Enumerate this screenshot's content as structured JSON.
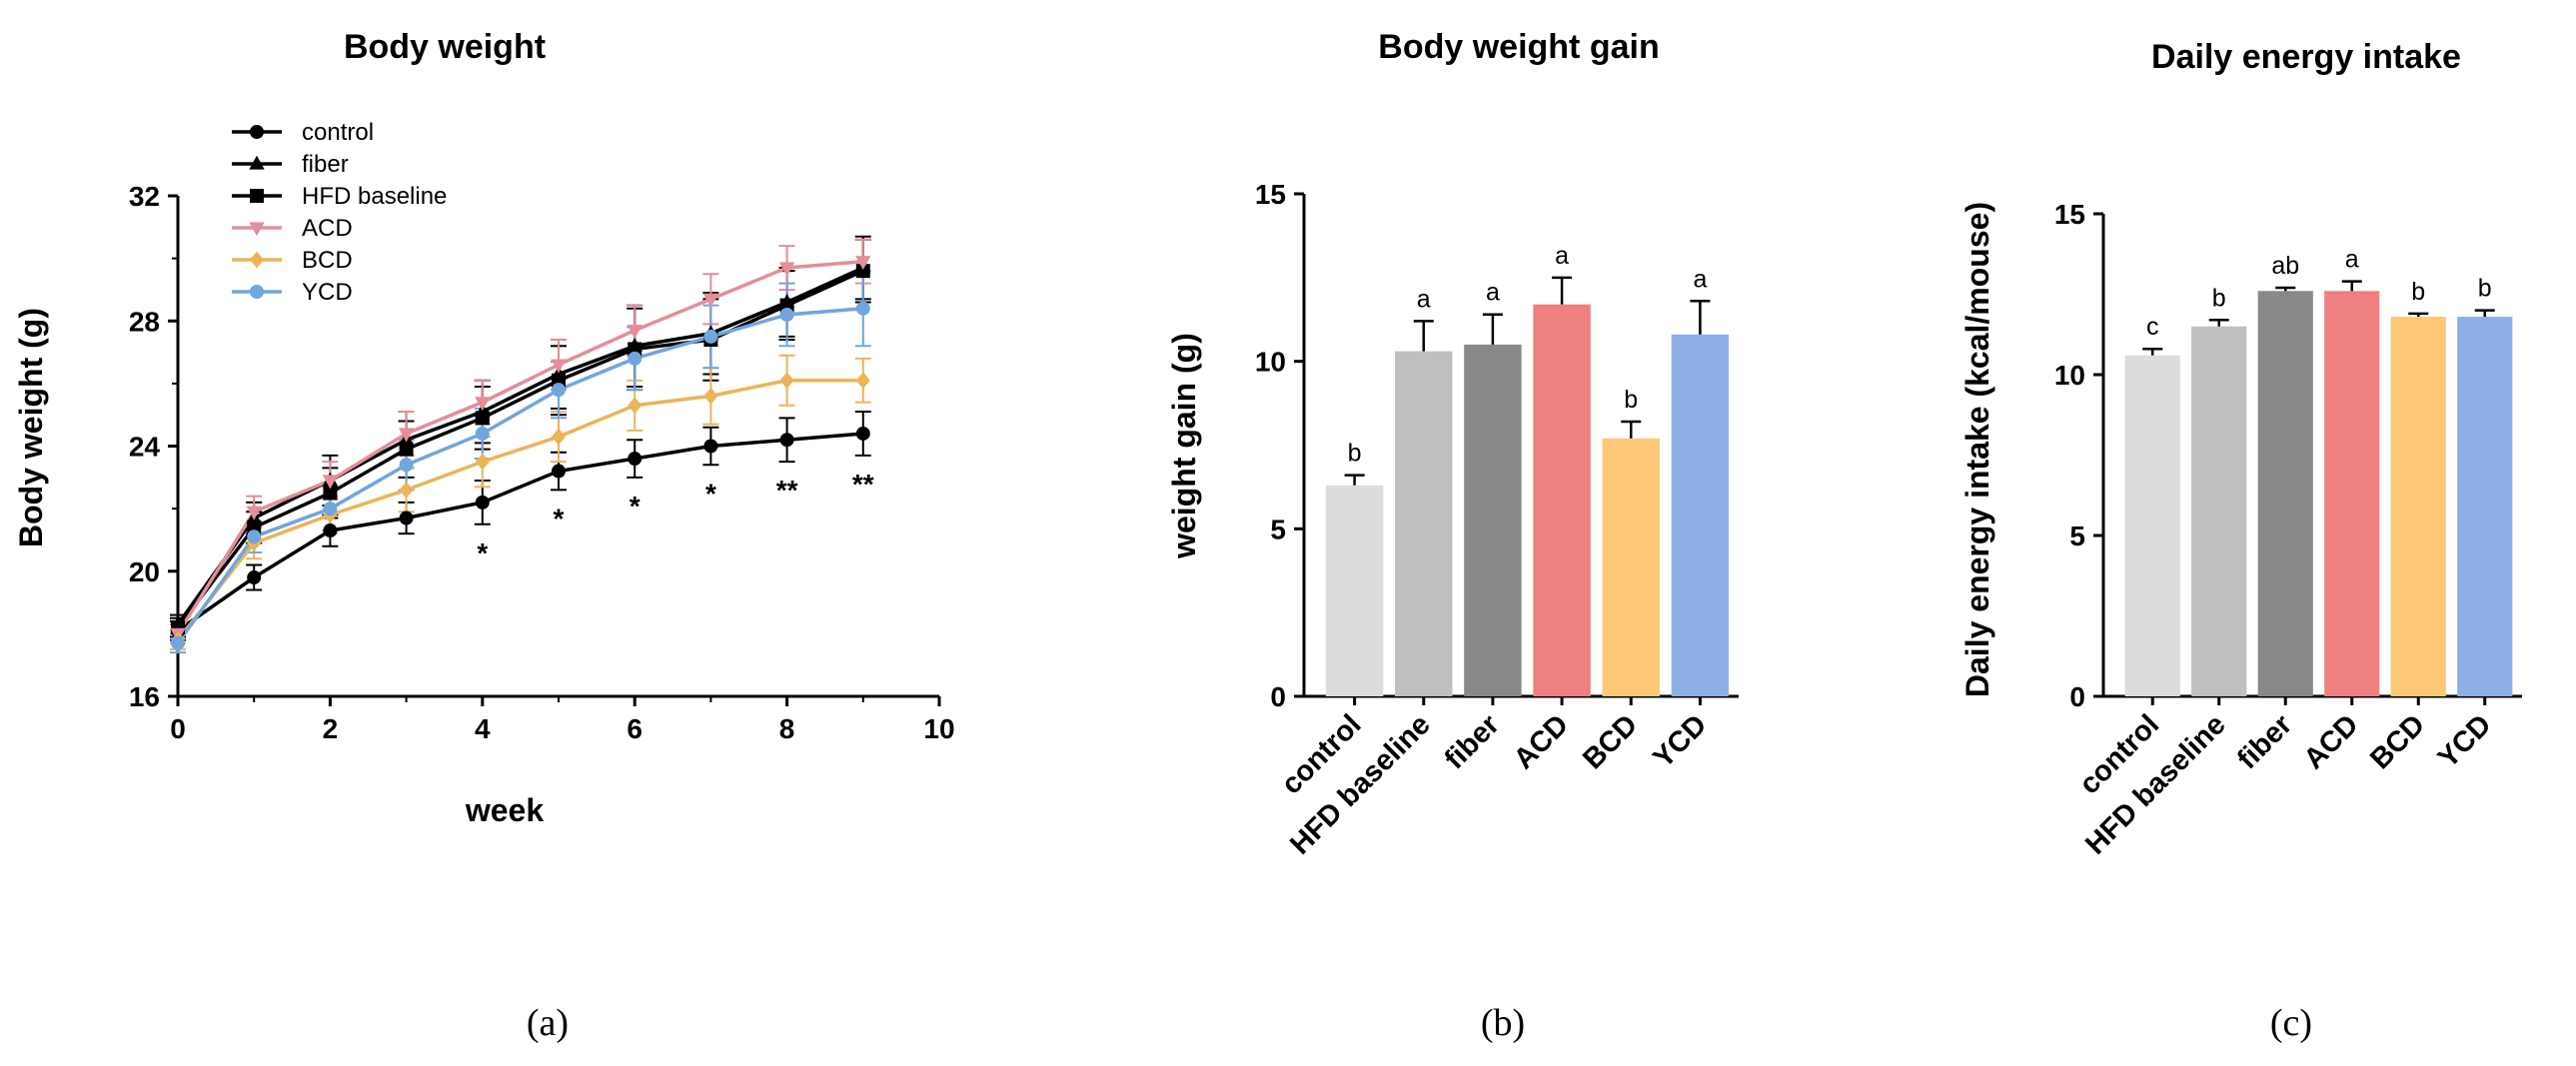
{
  "chart_data": [
    {
      "type": "line",
      "title": "Body weight",
      "xlabel": "week",
      "ylabel": "Body weight (g)",
      "xlim": [
        0,
        10
      ],
      "ylim": [
        16,
        32
      ],
      "xticks": [
        0,
        2,
        4,
        6,
        8,
        10
      ],
      "yticks": [
        16,
        20,
        24,
        28,
        32
      ],
      "x": [
        0,
        1,
        2,
        3,
        4,
        5,
        6,
        7,
        8,
        9
      ],
      "legend_position": "top-left",
      "series": [
        {
          "name": "control",
          "color": "#000000",
          "marker": "circle",
          "values": [
            18.1,
            19.8,
            21.3,
            21.7,
            22.2,
            23.2,
            23.6,
            24.0,
            24.2,
            24.4
          ],
          "errors": [
            0.3,
            0.4,
            0.5,
            0.5,
            0.7,
            0.6,
            0.6,
            0.6,
            0.7,
            0.7
          ]
        },
        {
          "name": "fiber",
          "color": "#000000",
          "marker": "triangle",
          "values": [
            18.3,
            21.7,
            22.9,
            24.2,
            25.1,
            26.3,
            27.2,
            27.6,
            28.6,
            29.7
          ],
          "errors": [
            0.3,
            0.5,
            0.8,
            0.9,
            1.0,
            1.1,
            1.3,
            1.3,
            1.1,
            1.0
          ]
        },
        {
          "name": "HFD baseline",
          "color": "#000000",
          "marker": "square",
          "values": [
            18.2,
            21.4,
            22.5,
            23.9,
            24.9,
            26.1,
            27.1,
            27.4,
            28.5,
            29.6
          ],
          "errors": [
            0.3,
            0.5,
            0.8,
            0.9,
            1.0,
            1.1,
            1.3,
            1.3,
            1.1,
            1.0
          ]
        },
        {
          "name": "ACD",
          "color": "#e38e9a",
          "marker": "triangle-down",
          "values": [
            18.0,
            21.9,
            22.9,
            24.4,
            25.4,
            26.6,
            27.7,
            28.7,
            29.7,
            29.9
          ],
          "errors": [
            0.3,
            0.5,
            0.6,
            0.7,
            0.7,
            0.8,
            0.8,
            0.8,
            0.7,
            0.7
          ]
        },
        {
          "name": "BCD",
          "color": "#ebb457",
          "marker": "diamond",
          "values": [
            17.8,
            20.9,
            21.8,
            22.6,
            23.5,
            24.3,
            25.3,
            25.6,
            26.1,
            26.1
          ],
          "errors": [
            0.3,
            0.5,
            0.6,
            0.7,
            0.8,
            0.8,
            0.8,
            0.9,
            0.8,
            0.7
          ]
        },
        {
          "name": "YCD",
          "color": "#6fa6dd",
          "marker": "circle",
          "values": [
            17.7,
            21.1,
            22.0,
            23.4,
            24.4,
            25.8,
            26.8,
            27.5,
            28.2,
            28.4
          ],
          "errors": [
            0.3,
            0.5,
            0.7,
            0.8,
            0.8,
            0.9,
            1.0,
            1.0,
            1.0,
            1.2
          ]
        }
      ],
      "annotations": [
        {
          "x": 4,
          "text": "*"
        },
        {
          "x": 5,
          "text": "*"
        },
        {
          "x": 6,
          "text": "*"
        },
        {
          "x": 7,
          "text": "*"
        },
        {
          "x": 8,
          "text": "**"
        },
        {
          "x": 9,
          "text": "**"
        }
      ],
      "panel_label": "(a)"
    },
    {
      "type": "bar",
      "title": "Body weight gain",
      "xlabel": "",
      "ylabel": "weight gain (g)",
      "ylim": [
        0,
        15
      ],
      "yticks": [
        0,
        5,
        10,
        15
      ],
      "categories": [
        "control",
        "HFD baseline",
        "fiber",
        "ACD",
        "BCD",
        "YCD"
      ],
      "values": [
        6.3,
        10.3,
        10.5,
        11.7,
        7.7,
        10.8
      ],
      "errors": [
        0.3,
        0.9,
        0.9,
        0.8,
        0.5,
        1.0
      ],
      "letters": [
        "b",
        "a",
        "a",
        "a",
        "b",
        "a"
      ],
      "colors": [
        "#dcdcdc",
        "#bfbfbf",
        "#888888",
        "#ee8080",
        "#fcc878",
        "#8eaee8"
      ],
      "panel_label": "(b)"
    },
    {
      "type": "bar",
      "title": "Daily energy intake",
      "xlabel": "",
      "ylabel": "Daily energy intake (kcal/mouse)",
      "ylim": [
        0,
        15
      ],
      "yticks": [
        0,
        5,
        10,
        15
      ],
      "categories": [
        "control",
        "HFD baseline",
        "fiber",
        "ACD",
        "BCD",
        "YCD"
      ],
      "values": [
        10.6,
        11.5,
        12.6,
        12.6,
        11.8,
        11.8
      ],
      "errors": [
        0.2,
        0.2,
        0.1,
        0.3,
        0.1,
        0.2
      ],
      "letters": [
        "c",
        "b",
        "ab",
        "a",
        "b",
        "b"
      ],
      "colors": [
        "#dcdcdc",
        "#bfbfbf",
        "#888888",
        "#ee8080",
        "#fcc878",
        "#8eaee8"
      ],
      "panel_label": "(c)"
    }
  ]
}
